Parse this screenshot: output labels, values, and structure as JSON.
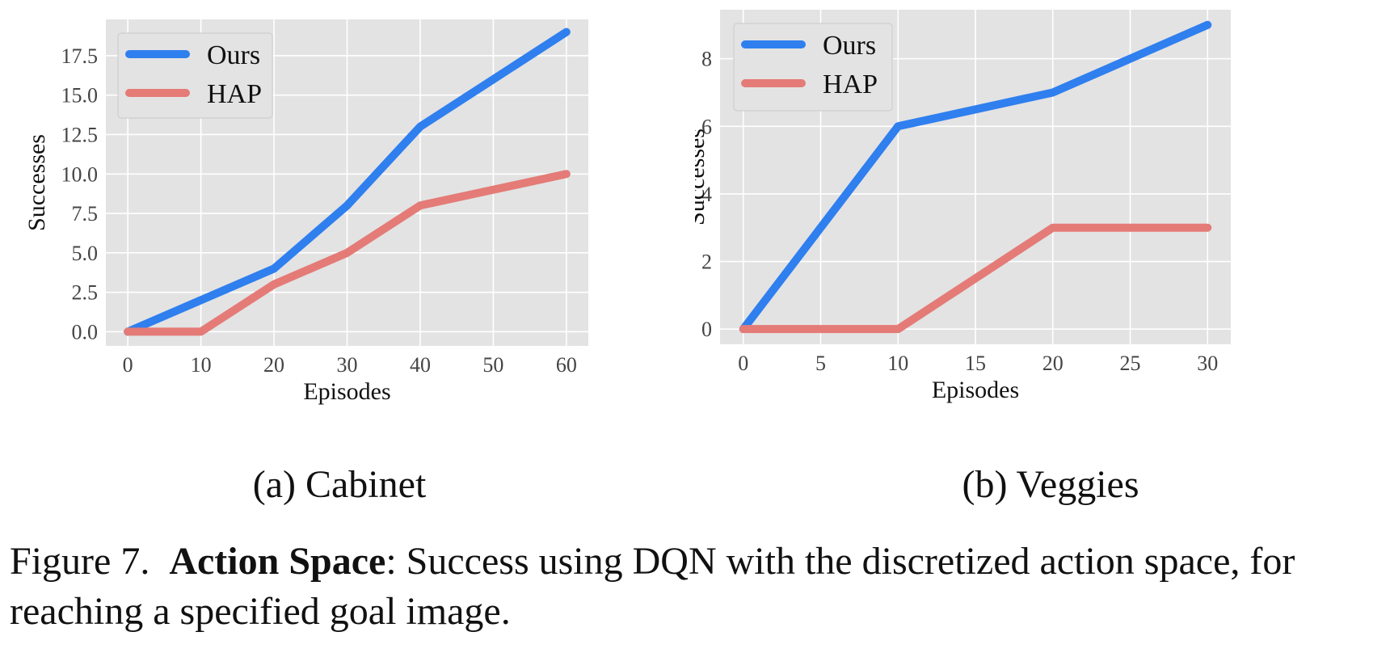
{
  "chart_data": [
    {
      "type": "line",
      "xlabel": "Episodes",
      "ylabel": "Successes",
      "xlim": [
        -3,
        63
      ],
      "ylim": [
        -0.9,
        19.8
      ],
      "xticks": [
        0,
        10,
        20,
        30,
        40,
        50,
        60
      ],
      "yticks": [
        0.0,
        2.5,
        5.0,
        7.5,
        10.0,
        12.5,
        15.0,
        17.5
      ],
      "ytick_labels": [
        "0.0",
        "2.5",
        "5.0",
        "7.5",
        "10.0",
        "12.5",
        "15.0",
        "17.5"
      ],
      "grid": true,
      "legend": "top-left",
      "x": [
        0,
        10,
        20,
        30,
        40,
        50,
        60
      ],
      "series": [
        {
          "name": "Ours",
          "color": "#2f7fef",
          "values": [
            0,
            2,
            4,
            8,
            13,
            16,
            19
          ]
        },
        {
          "name": "HAP",
          "color": "#e47b77",
          "values": [
            0,
            0,
            3,
            5,
            8,
            9,
            10
          ]
        }
      ]
    },
    {
      "type": "line",
      "xlabel": "Episodes",
      "ylabel": "Successes",
      "xlim": [
        -1.5,
        31.5
      ],
      "ylim": [
        -0.45,
        9.45
      ],
      "xticks": [
        0,
        5,
        10,
        15,
        20,
        25,
        30
      ],
      "yticks": [
        0,
        2,
        4,
        6,
        8
      ],
      "ytick_labels": [
        "0",
        "2",
        "4",
        "6",
        "8"
      ],
      "grid": true,
      "legend": "top-left",
      "x": [
        0,
        10,
        20,
        30
      ],
      "series": [
        {
          "name": "Ours",
          "color": "#2f7fef",
          "values": [
            0,
            6,
            7,
            9
          ]
        },
        {
          "name": "HAP",
          "color": "#e47b77",
          "values": [
            0,
            0,
            3,
            3
          ]
        }
      ]
    }
  ],
  "subcaptions": {
    "a": "(a) Cabinet",
    "b": "(b) Veggies"
  },
  "caption": {
    "prefix": "Figure 7.",
    "bold": "Action Space",
    "rest": ": Success using DQN with the discretized action space, for reaching a specified goal image."
  },
  "colors": {
    "plot_background": "#e3e3e3",
    "grid": "#ffffff",
    "ours": "#2f7fef",
    "hap": "#e47b77"
  }
}
